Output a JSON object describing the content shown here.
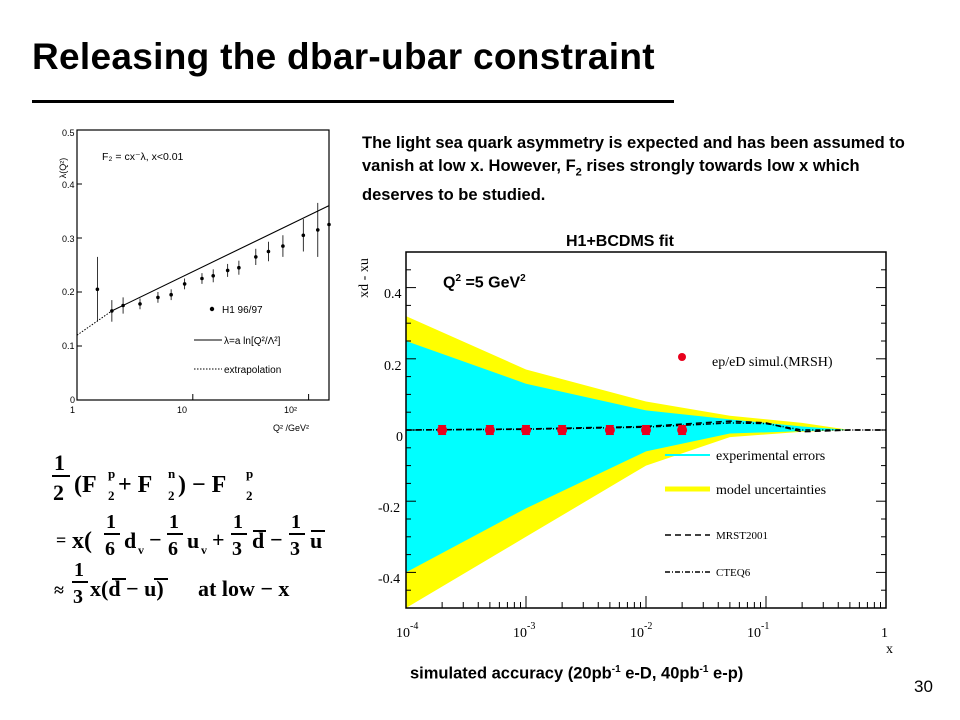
{
  "slide": {
    "title": "Releasing the dbar-ubar constraint",
    "intro_before_sub": "The light sea quark asymmetry is expected and has been assumed to vanish at low x. However, F",
    "intro_sub": "2",
    "intro_after_sub": " rises strongly towards low x which deserves to be studied.",
    "page_number": "30"
  },
  "lambda_plot": {
    "ylabel": "λ(Q²)",
    "xlabel": "Q² /GeV²",
    "formula": "F₂ = cx⁻λ,  x<0.01",
    "legend": [
      {
        "label": "H1 96/97",
        "style": "marker"
      },
      {
        "label": "λ=a ln[Q²/Λ²]",
        "style": "solid"
      },
      {
        "label": "extrapolation",
        "style": "dotted"
      }
    ],
    "xticks": [
      "1",
      "10",
      "10²"
    ],
    "yticks": [
      "0",
      "0.1",
      "0.2",
      "0.3",
      "0.4",
      "0.5"
    ]
  },
  "equations": {
    "line1": {
      "lead": "1",
      "den": "2",
      "mid": "(F",
      "p": "p",
      "two": "2",
      "plus": " + F",
      "n": "n",
      "close": ") − F",
      "p2": "p"
    },
    "line2": {
      "eq": "=",
      "x": "x(",
      "a_num": "1",
      "a_den": "6",
      "dv": "d",
      "dv_sub": "v",
      "b_num": "1",
      "b_den": "6",
      "uv": "u",
      "uv_sub": "v",
      "c_num": "1",
      "c_den": "3",
      "dbar": "d",
      "d_num": "1",
      "d_den": "3",
      "ubar": "u"
    },
    "line3": {
      "approx": "≈",
      "num": "1",
      "den": "3",
      "body": "x(d − u)",
      "tail": "at low − x"
    }
  },
  "sea_plot": {
    "top_label": "H1+BCDMS fit",
    "q2_label_pre": "Q",
    "q2_sup": "2",
    "q2_label_mid": " =5 GeV",
    "q2_sup2": "2",
    "ylabel": "xd - xu",
    "xlabel": "x",
    "legend": [
      {
        "label": "ep/eD simul.(MRSH)",
        "style": "marker"
      },
      {
        "label": "experimental errors",
        "style": "cyan"
      },
      {
        "label": "model uncertainties",
        "style": "yellow"
      },
      {
        "label": "MRST2001",
        "style": "dashed"
      },
      {
        "label": "CTEQ6",
        "style": "dashdot"
      }
    ],
    "yticks": [
      "0.4",
      "0.2",
      "0",
      "-0.2",
      "-0.4"
    ],
    "xticks": [
      "10",
      "10",
      "10",
      "10",
      "1"
    ],
    "xtick_exps": [
      "-4",
      "-3",
      "-2",
      "-1",
      ""
    ]
  },
  "caption": {
    "pre": "simulated accuracy (20pb",
    "sup1": "-1",
    "mid": " e-D, 40pb",
    "sup2": "-1",
    "post": " e-p)"
  },
  "colors": {
    "cyan": "#00FFFF",
    "yellow": "#FFFF00",
    "marker_red": "#E8001C"
  },
  "chart_data": [
    {
      "type": "scatter",
      "title": "",
      "xlabel": "Q² /GeV²",
      "ylabel": "λ(Q²)",
      "xscale": "log",
      "xlim": [
        1,
        150
      ],
      "ylim": [
        0,
        0.5
      ],
      "series": [
        {
          "name": "H1 96/97",
          "x": [
            1.5,
            2.0,
            2.5,
            3.5,
            5.0,
            6.5,
            8.5,
            12,
            15,
            20,
            25,
            35,
            45,
            60,
            90,
            120,
            150
          ],
          "y": [
            0.205,
            0.165,
            0.175,
            0.178,
            0.19,
            0.195,
            0.215,
            0.225,
            0.23,
            0.24,
            0.245,
            0.265,
            0.275,
            0.285,
            0.305,
            0.315,
            0.325
          ],
          "yerr": [
            0.06,
            0.02,
            0.015,
            0.01,
            0.01,
            0.01,
            0.01,
            0.01,
            0.012,
            0.012,
            0.013,
            0.015,
            0.018,
            0.02,
            0.03,
            0.05,
            0.06
          ]
        },
        {
          "name": "λ=a ln[Q²/Λ²]",
          "x": [
            2,
            150
          ],
          "y": [
            0.165,
            0.36
          ]
        },
        {
          "name": "extrapolation",
          "x": [
            1,
            2
          ],
          "y": [
            0.12,
            0.165
          ]
        }
      ]
    },
    {
      "type": "area",
      "title": "H1+BCDMS fit",
      "xlabel": "x",
      "ylabel": "xd - xu",
      "xscale": "log",
      "xlim": [
        0.0001,
        1
      ],
      "ylim": [
        -0.5,
        0.5
      ],
      "series": [
        {
          "name": "model uncertainties",
          "x": [
            0.0001,
            0.001,
            0.01,
            0.05,
            0.2,
            0.5
          ],
          "upper": [
            0.32,
            0.17,
            0.08,
            0.04,
            0.02,
            0.0
          ],
          "lower": [
            -0.5,
            -0.3,
            -0.1,
            -0.02,
            -0.005,
            0.0
          ]
        },
        {
          "name": "experimental errors",
          "x": [
            0.0001,
            0.001,
            0.01,
            0.05,
            0.2,
            0.5
          ],
          "upper": [
            0.25,
            0.13,
            0.055,
            0.03,
            0.01,
            0.0
          ],
          "lower": [
            -0.4,
            -0.22,
            -0.06,
            -0.01,
            -0.003,
            0.0
          ]
        },
        {
          "name": "ep/eD simul.(MRSH)",
          "x": [
            0.0002,
            0.0005,
            0.001,
            0.002,
            0.005,
            0.01,
            0.02
          ],
          "y": [
            0.0,
            0.0,
            0.0,
            0.0,
            0.0,
            0.0,
            0.0
          ],
          "yerr": [
            0.012,
            0.012,
            0.012,
            0.012,
            0.012,
            0.012,
            0.012
          ]
        },
        {
          "name": "MRST2001",
          "x": [
            0.0001,
            0.001,
            0.01,
            0.05,
            0.1,
            0.2,
            0.5,
            1
          ],
          "y": [
            0.0,
            0.003,
            0.01,
            0.025,
            0.02,
            -0.005,
            0.0,
            0.0
          ]
        },
        {
          "name": "CTEQ6",
          "x": [
            0.0001,
            0.001,
            0.01,
            0.05,
            0.1,
            0.2,
            0.5,
            1
          ],
          "y": [
            0.0,
            0.002,
            0.008,
            0.02,
            0.018,
            0.0,
            0.0,
            0.0
          ]
        }
      ]
    }
  ]
}
